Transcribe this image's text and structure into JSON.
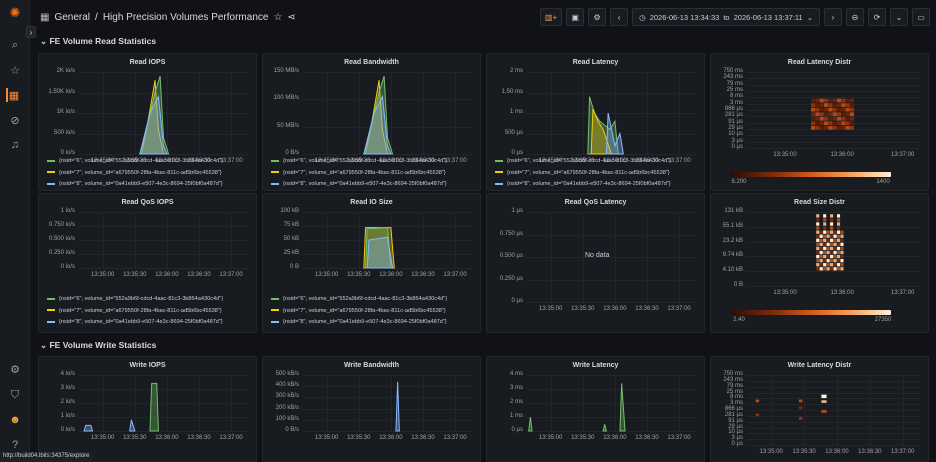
{
  "sidebar": {
    "expand_icon": "›"
  },
  "header": {
    "breadcrumb_root": "General",
    "separator": "/",
    "title": "High Precision Volumes Performance",
    "time_from": "2026-06-13 13:34:33",
    "time_to_word": "to",
    "time_to": "2026-06-13 13:37:11"
  },
  "rows": {
    "read": "FE Volume Read Statistics",
    "write": "FE Volume Write Statistics"
  },
  "legend": [
    {
      "label": "{nsid=\"6\", volume_id=\"552a9b6f-cdcd-4aac-81c3-3b864a430c4d\"}",
      "color": "#73bf69"
    },
    {
      "label": "{nsid=\"7\", volume_id=\"a679550f-28fa-4bac-811c-ad5b6bc45538\"}",
      "color": "#f2cc0c"
    },
    {
      "label": "{nsid=\"8\", volume_id=\"0a41ebb9-e507-4e3c-8694-25f0bf0a487d\"}",
      "color": "#8ab8ff"
    }
  ],
  "x_ticks": [
    "13:35:00",
    "13:35:30",
    "13:36:00",
    "13:36:30",
    "13:37:00"
  ],
  "panels": {
    "read_iops": {
      "title": "Read IOPS",
      "y": [
        "2K io/s",
        "1.50K io/s",
        "1K io/s",
        "500 io/s",
        "0 io/s"
      ]
    },
    "read_bw": {
      "title": "Read Bandwidth",
      "y": [
        "150 MB/s",
        "100 MB/s",
        "50 MB/s",
        "0 B/s"
      ]
    },
    "read_lat": {
      "title": "Read Latency",
      "y": [
        "2 ms",
        "1.50 ms",
        "1 ms",
        "500 µs",
        "0 µs"
      ]
    },
    "read_lat_distr": {
      "title": "Read Latency Distr",
      "y": [
        "750 ms",
        "243 ms",
        "79 ms",
        "25 ms",
        "8 ms",
        "3 ms",
        "866 µs",
        "281 µs",
        "91 µs",
        "29 µs",
        "10 µs",
        "3 µs",
        "0 µs"
      ],
      "x": [
        "13:35:00",
        "13:36:00",
        "13:37:00"
      ],
      "scale_min": "6.200",
      "scale_max": "1400"
    },
    "read_qos_iops": {
      "title": "Read QoS IOPS",
      "y": [
        "1 io/s",
        "0.750 io/s",
        "0.500 io/s",
        "0.250 io/s",
        "0 io/s"
      ]
    },
    "read_io_size": {
      "title": "Read IO Size",
      "y": [
        "100 kB",
        "75 kB",
        "50 kB",
        "25 kB",
        "0 B"
      ]
    },
    "read_qos_lat": {
      "title": "Read QoS Latency",
      "y": [
        "1 µs",
        "0.750 µs",
        "0.500 µs",
        "0.250 µs",
        "0 µs"
      ],
      "nodata": "No data"
    },
    "read_size_distr": {
      "title": "Read Size Distr",
      "y": [
        "131 kB",
        "55.1 kB",
        "23.2 kB",
        "9.74 kB",
        "4.10 kB",
        "0 B"
      ],
      "x": [
        "13:35:00",
        "13:36:00",
        "13:37:00"
      ],
      "scale_min": "2.40",
      "scale_max": "27350"
    },
    "write_iops": {
      "title": "Write IOPS",
      "y": [
        "4 io/s",
        "3 io/s",
        "2 io/s",
        "1 io/s",
        "0 io/s"
      ]
    },
    "write_bw": {
      "title": "Write Bandwidth",
      "y": [
        "500 kB/s",
        "400 kB/s",
        "300 kB/s",
        "200 kB/s",
        "100 kB/s",
        "0 B/s"
      ]
    },
    "write_lat": {
      "title": "Write Latency",
      "y": [
        "4 ms",
        "3 ms",
        "2 ms",
        "1 ms",
        "0 µs"
      ]
    },
    "write_lat_distr": {
      "title": "Write Latency Distr",
      "chev": "⌄",
      "y": [
        "750 ms",
        "243 ms",
        "79 ms",
        "25 ms",
        "8 ms",
        "3 ms",
        "866 µs",
        "281 µs",
        "91 µs",
        "29 µs",
        "10 µs",
        "3 µs",
        "0 µs"
      ]
    }
  },
  "status": {
    "url": "http://build04.lbits:34375/explore"
  }
}
